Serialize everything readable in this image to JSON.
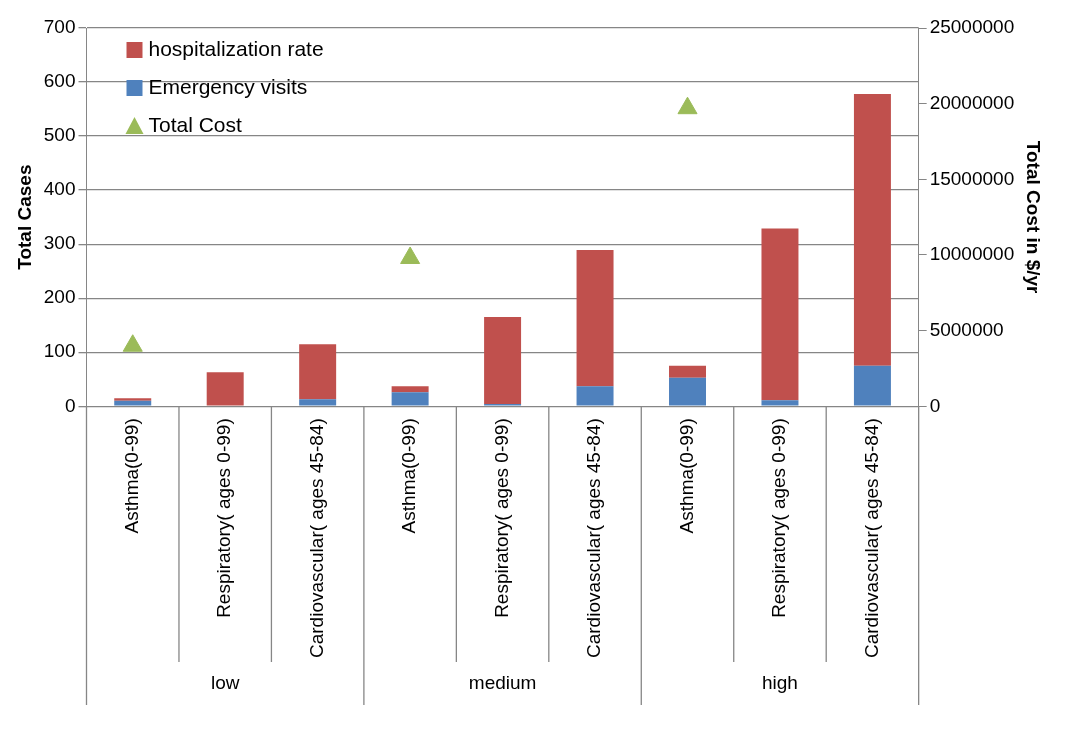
{
  "chart_data": {
    "type": "bar",
    "stacked": true,
    "categories": [
      "Asthma(0-99)",
      "Respiratory( ages 0-99)",
      "Cardiovascular( ages 45-84)",
      "Asthma(0-99)",
      "Respiratory( ages 0-99)",
      "Cardiovascular( ages 45-84)",
      "Asthma(0-99)",
      "Respiratory( ages 0-99)",
      "Cardiovascular( ages 45-84)"
    ],
    "series": [
      {
        "name": "Emergency visits",
        "color": "#4f81bd",
        "values": [
          10,
          null,
          13,
          26,
          4,
          37,
          53,
          11,
          75
        ]
      },
      {
        "name": "hospitalization rate",
        "color": "#c0504d",
        "values": [
          5,
          63,
          102,
          11,
          161,
          252,
          22,
          318,
          503
        ]
      },
      {
        "name": "Total Cost",
        "type": "scatter",
        "axis": "y2",
        "color": "#9bbb59",
        "values": [
          4000000,
          null,
          null,
          9800000,
          null,
          null,
          19700000,
          null,
          null
        ]
      }
    ],
    "marker": "triangle",
    "ylabel": "Total Cases",
    "y2label": "Total Cost in $/yr",
    "ylim": [
      0,
      700
    ],
    "yticks": [
      0,
      100,
      200,
      300,
      400,
      500,
      600,
      700
    ],
    "y2lim": [
      0,
      25000000
    ],
    "y2ticks": [
      0,
      5000000,
      10000000,
      15000000,
      20000000,
      25000000
    ],
    "grid": "y",
    "legend": "top left",
    "annotations": [
      "low",
      "medium",
      "high"
    ]
  }
}
